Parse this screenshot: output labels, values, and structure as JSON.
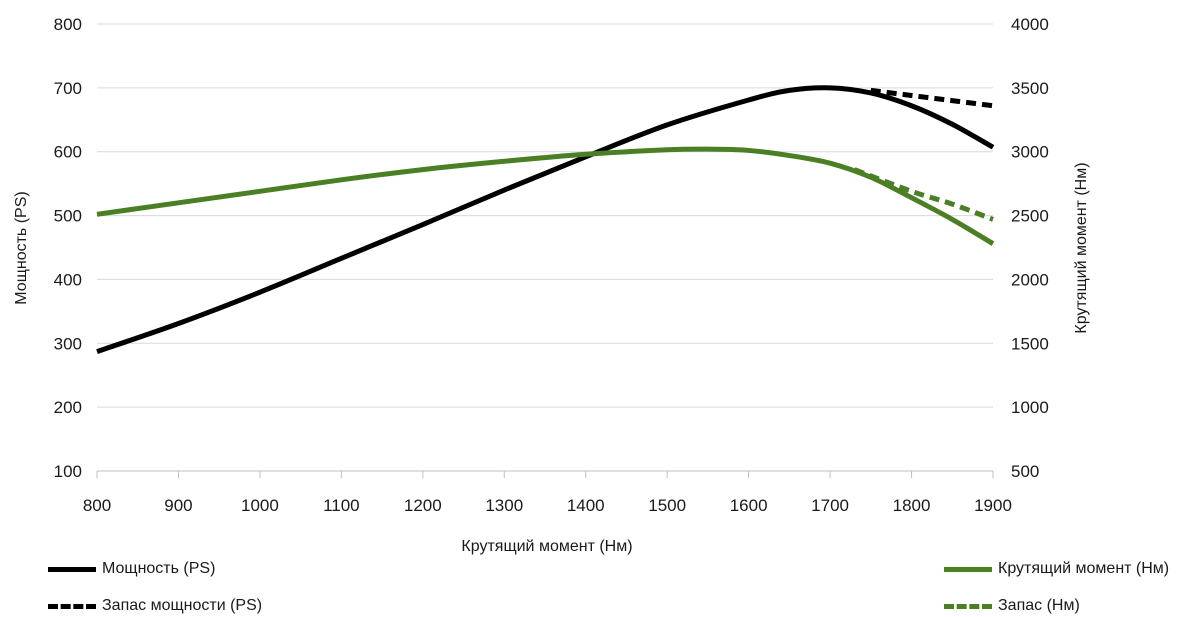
{
  "chart_data": {
    "type": "line",
    "xlabel": "Крутящий момент (Нм)",
    "ylabel_left": "Мощность (PS)",
    "ylabel_right": "Крутящий момент (Нм)",
    "xlim": [
      800,
      1900
    ],
    "ylim_left": [
      100,
      800
    ],
    "ylim_right": [
      500,
      4000
    ],
    "x_ticks": [
      "800",
      "900",
      "1000",
      "1100",
      "1200",
      "1300",
      "1400",
      "1500",
      "1600",
      "1700",
      "1800",
      "1900"
    ],
    "y_left_ticks": [
      "100",
      "200",
      "300",
      "400",
      "500",
      "600",
      "700",
      "800"
    ],
    "y_right_ticks": [
      "500",
      "1000",
      "1500",
      "2000",
      "2500",
      "3000",
      "3500",
      "4000"
    ],
    "grid": true,
    "series": [
      {
        "name": "Мощность (PS)",
        "axis": "left",
        "color": "#000000",
        "style": "solid",
        "x": [
          800,
          900,
          1000,
          1100,
          1200,
          1300,
          1400,
          1500,
          1600,
          1650,
          1700,
          1750,
          1800,
          1850,
          1900
        ],
        "values": [
          287,
          331,
          380,
          433,
          486,
          540,
          592,
          642,
          681,
          696,
          700,
          692,
          672,
          643,
          607
        ]
      },
      {
        "name": "Запас мощности (PS)",
        "axis": "left",
        "color": "#000000",
        "style": "dashed",
        "x": [
          1750,
          1800,
          1850,
          1900
        ],
        "values": [
          696,
          688,
          680,
          672
        ]
      },
      {
        "name": "Крутящий момент (Нм)",
        "axis": "right",
        "color": "#4a7f23",
        "style": "solid",
        "x": [
          800,
          900,
          1000,
          1100,
          1200,
          1300,
          1400,
          1500,
          1550,
          1600,
          1650,
          1700,
          1750,
          1800,
          1850,
          1900
        ],
        "values": [
          2510,
          2600,
          2690,
          2780,
          2860,
          2925,
          2980,
          3015,
          3020,
          3010,
          2970,
          2910,
          2800,
          2640,
          2470,
          2280
        ]
      },
      {
        "name": "Запас (Нм)",
        "axis": "right",
        "color": "#4a7f23",
        "style": "dashed",
        "x": [
          1730,
          1800,
          1850,
          1900
        ],
        "values": [
          2860,
          2690,
          2590,
          2470
        ]
      }
    ],
    "legend": [
      {
        "label": "Мощность (PS)",
        "style": "solid",
        "color": "#000000",
        "position": "bottom-left"
      },
      {
        "label": "Запас мощности (PS)",
        "style": "dashed",
        "color": "#000000",
        "position": "bottom-left"
      },
      {
        "label": "Крутящий момент (Нм)",
        "style": "solid",
        "color": "#4a7f23",
        "position": "bottom-right"
      },
      {
        "label": "Запас (Нм)",
        "style": "dashed",
        "color": "#4a7f23",
        "position": "bottom-right"
      }
    ]
  }
}
